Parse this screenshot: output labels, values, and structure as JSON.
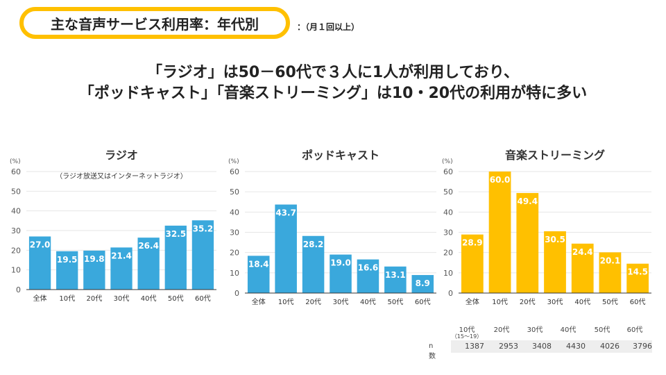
{
  "header": {
    "title": "主な音声サービス利用率：年代別",
    "subtitle": "：（月１回以上）"
  },
  "headline": {
    "line1": "「ラジオ」は50－60代で３人に1人が利用しており、",
    "line2": "「ポッドキャスト」「音楽ストリーミング」は10・20代の利用が特に多い"
  },
  "chart_data": [
    {
      "type": "bar",
      "title": "ラジオ",
      "note": "（ラジオ放送又はインターネットラジオ）",
      "ylabel": "(%)",
      "ylim": [
        0,
        60
      ],
      "yticks": [
        0,
        10,
        20,
        30,
        40,
        50,
        60
      ],
      "categories": [
        "全体",
        "10代",
        "20代",
        "30代",
        "40代",
        "50代",
        "60代"
      ],
      "values": [
        27.0,
        19.5,
        19.8,
        21.4,
        26.4,
        32.5,
        35.2
      ],
      "color": "#3aa8dc"
    },
    {
      "type": "bar",
      "title": "ポッドキャスト",
      "ylabel": "(%)",
      "ylim": [
        0,
        60
      ],
      "yticks": [
        0,
        10,
        20,
        30,
        40,
        50,
        60
      ],
      "categories": [
        "全体",
        "10代",
        "20代",
        "30代",
        "40代",
        "50代",
        "60代"
      ],
      "values": [
        18.4,
        43.7,
        28.2,
        19.0,
        16.6,
        13.1,
        8.9
      ],
      "color": "#3aa8dc"
    },
    {
      "type": "bar",
      "title": "音楽ストリーミング",
      "ylabel": "(%)",
      "ylim": [
        0,
        60
      ],
      "yticks": [
        0,
        10,
        20,
        30,
        40,
        50,
        60
      ],
      "categories": [
        "全体",
        "10代",
        "20代",
        "30代",
        "40代",
        "50代",
        "60代"
      ],
      "values": [
        28.9,
        60.0,
        49.4,
        30.5,
        24.4,
        20.1,
        14.5
      ],
      "color": "#ffc000"
    }
  ],
  "sample": {
    "label": "n 数",
    "headers": [
      "10代",
      "20代",
      "30代",
      "40代",
      "50代",
      "60代"
    ],
    "subnote": "（15～19）",
    "values": [
      "1387",
      "2953",
      "3408",
      "4430",
      "4026",
      "3796"
    ]
  }
}
